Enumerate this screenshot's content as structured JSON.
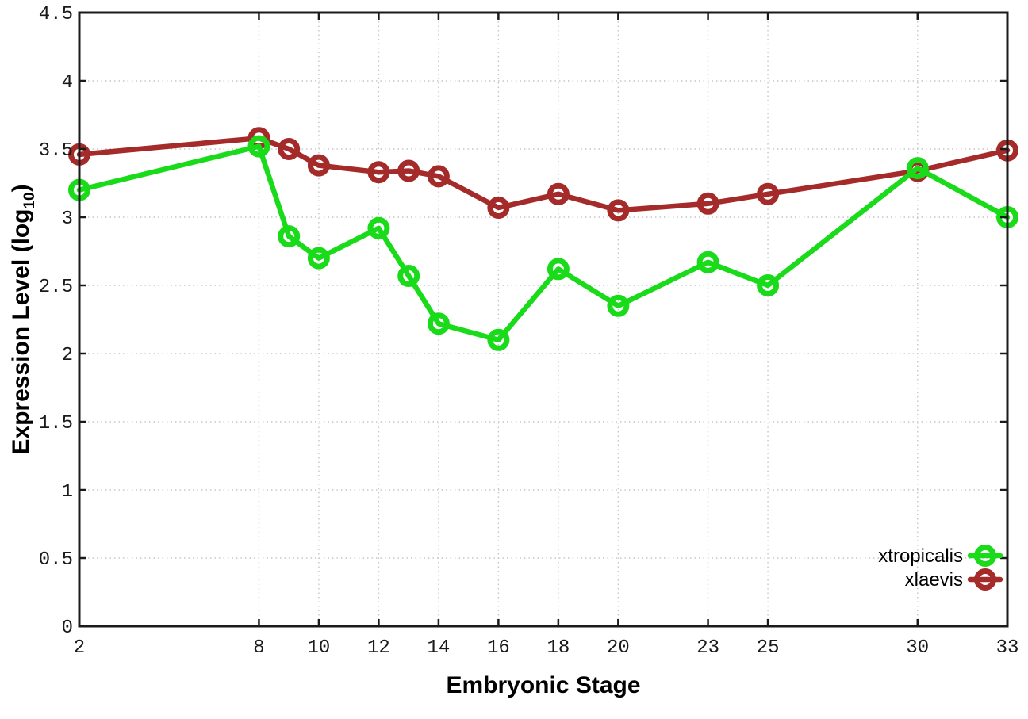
{
  "chart_data": {
    "type": "line",
    "title": "",
    "xlabel": "Embryonic Stage",
    "ylabel": {
      "pre": "Expression Level (log",
      "sub": "10",
      "post": ")"
    },
    "x": [
      2,
      8,
      9,
      10,
      12,
      13,
      14,
      16,
      18,
      20,
      23,
      25,
      30,
      33
    ],
    "series": [
      {
        "name": "xtropicalis",
        "color": "#1adb1a",
        "marker": "open-circle",
        "values": [
          3.2,
          3.52,
          2.86,
          2.7,
          2.92,
          2.57,
          2.22,
          2.1,
          2.62,
          2.35,
          2.67,
          2.5,
          3.36,
          3.0
        ]
      },
      {
        "name": "xlaevis",
        "color": "#a52a2a",
        "marker": "open-circle",
        "values": [
          3.46,
          3.58,
          3.5,
          3.38,
          3.33,
          3.34,
          3.3,
          3.07,
          3.17,
          3.05,
          3.1,
          3.17,
          3.34,
          3.49
        ]
      }
    ],
    "xlim": [
      2,
      33
    ],
    "ylim": [
      0,
      4.5
    ],
    "xtick_values": [
      2,
      8,
      10,
      12,
      14,
      16,
      18,
      20,
      23,
      25,
      30,
      33
    ],
    "xtick_labels": [
      "2",
      "8",
      "10",
      "12",
      "14",
      "16",
      "18",
      "20",
      "23",
      "25",
      "30",
      "33"
    ],
    "ytick_values": [
      0,
      0.5,
      1,
      1.5,
      2,
      2.5,
      3,
      3.5,
      4,
      4.5
    ],
    "ytick_labels": [
      "0",
      "0.5",
      "1",
      "1.5",
      "2",
      "2.5",
      "3",
      "3.5",
      "4",
      "4.5"
    ],
    "grid": true,
    "legend_position": "inside-bottom-right",
    "styles": {
      "background": "#ffffff",
      "grid_color": "#c6c6c6",
      "axis_color": "#1a1a1a",
      "text_color": "#1a1a1a"
    }
  }
}
